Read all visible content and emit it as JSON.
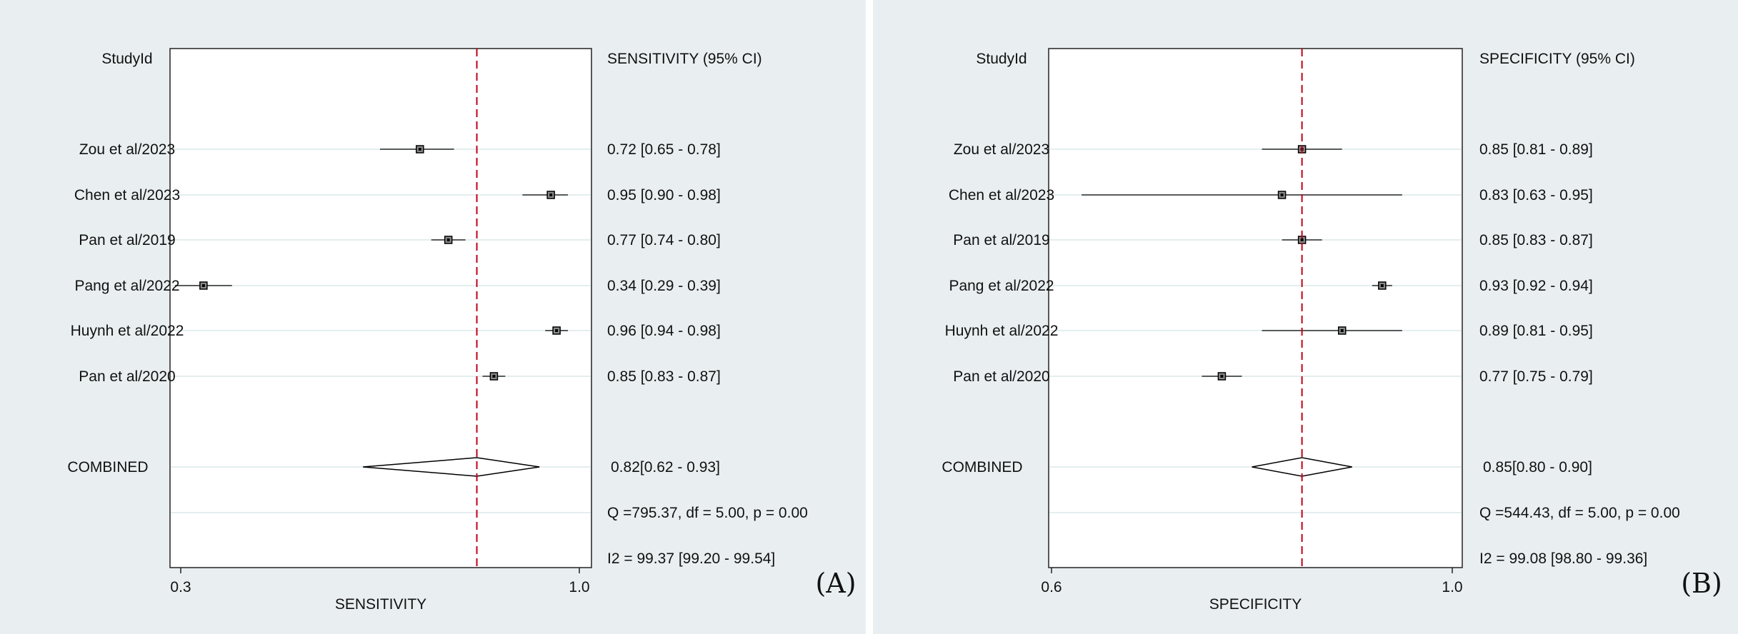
{
  "colors": {
    "background": "#e9eff1",
    "plot_area": "#ffffff",
    "gridline": "#dbe8ea",
    "reference_line": "#c0001a",
    "marks": "#000000",
    "point_fill": "#8a8a8a"
  },
  "chart_data": [
    {
      "type": "forest",
      "panel_label": "(A)",
      "study_header": "StudyId",
      "ci_header": "SENSITIVITY (95% CI)",
      "xlabel": "SENSITIVITY",
      "xlim": [
        0.3,
        1.0
      ],
      "xticks": [
        "0.3",
        "1.0"
      ],
      "reference_value": 0.82,
      "studies": [
        {
          "name": "Zou et al/2023",
          "estimate": 0.72,
          "lower": 0.65,
          "upper": 0.78,
          "ci_text": "0.72 [0.65 - 0.78]"
        },
        {
          "name": "Chen et al/2023",
          "estimate": 0.95,
          "lower": 0.9,
          "upper": 0.98,
          "ci_text": "0.95 [0.90 - 0.98]"
        },
        {
          "name": "Pan et al/2019",
          "estimate": 0.77,
          "lower": 0.74,
          "upper": 0.8,
          "ci_text": "0.77 [0.74 - 0.80]"
        },
        {
          "name": "Pang et al/2022",
          "estimate": 0.34,
          "lower": 0.29,
          "upper": 0.39,
          "ci_text": "0.34 [0.29 - 0.39]"
        },
        {
          "name": "Huynh et al/2022",
          "estimate": 0.96,
          "lower": 0.94,
          "upper": 0.98,
          "ci_text": "0.96 [0.94 - 0.98]"
        },
        {
          "name": "Pan et al/2020",
          "estimate": 0.85,
          "lower": 0.83,
          "upper": 0.87,
          "ci_text": "0.85 [0.83 - 0.87]"
        }
      ],
      "combined": {
        "name": "COMBINED",
        "estimate": 0.82,
        "lower": 0.62,
        "upper": 0.93,
        "ci_text": "0.82[0.62 - 0.93]"
      },
      "heterogeneity": [
        "Q =795.37, df = 5.00, p =  0.00",
        "I2 = 99.37 [99.20 - 99.54]"
      ]
    },
    {
      "type": "forest",
      "panel_label": "(B)",
      "study_header": "StudyId",
      "ci_header": "SPECIFICITY (95% CI)",
      "xlabel": "SPECIFICITY",
      "xlim": [
        0.6,
        1.0
      ],
      "xticks": [
        "0.6",
        "1.0"
      ],
      "reference_value": 0.85,
      "studies": [
        {
          "name": "Zou et al/2023",
          "estimate": 0.85,
          "lower": 0.81,
          "upper": 0.89,
          "ci_text": "0.85 [0.81 - 0.89]"
        },
        {
          "name": "Chen et al/2023",
          "estimate": 0.83,
          "lower": 0.63,
          "upper": 0.95,
          "ci_text": "0.83 [0.63 - 0.95]"
        },
        {
          "name": "Pan et al/2019",
          "estimate": 0.85,
          "lower": 0.83,
          "upper": 0.87,
          "ci_text": "0.85 [0.83 - 0.87]"
        },
        {
          "name": "Pang et al/2022",
          "estimate": 0.93,
          "lower": 0.92,
          "upper": 0.94,
          "ci_text": "0.93 [0.92 - 0.94]"
        },
        {
          "name": "Huynh et al/2022",
          "estimate": 0.89,
          "lower": 0.81,
          "upper": 0.95,
          "ci_text": "0.89 [0.81 - 0.95]"
        },
        {
          "name": "Pan et al/2020",
          "estimate": 0.77,
          "lower": 0.75,
          "upper": 0.79,
          "ci_text": "0.77 [0.75 - 0.79]"
        }
      ],
      "combined": {
        "name": "COMBINED",
        "estimate": 0.85,
        "lower": 0.8,
        "upper": 0.9,
        "ci_text": "0.85[0.80 - 0.90]"
      },
      "heterogeneity": [
        "Q =544.43, df = 5.00, p =  0.00",
        "I2 = 99.08 [98.80 - 99.36]"
      ]
    }
  ]
}
